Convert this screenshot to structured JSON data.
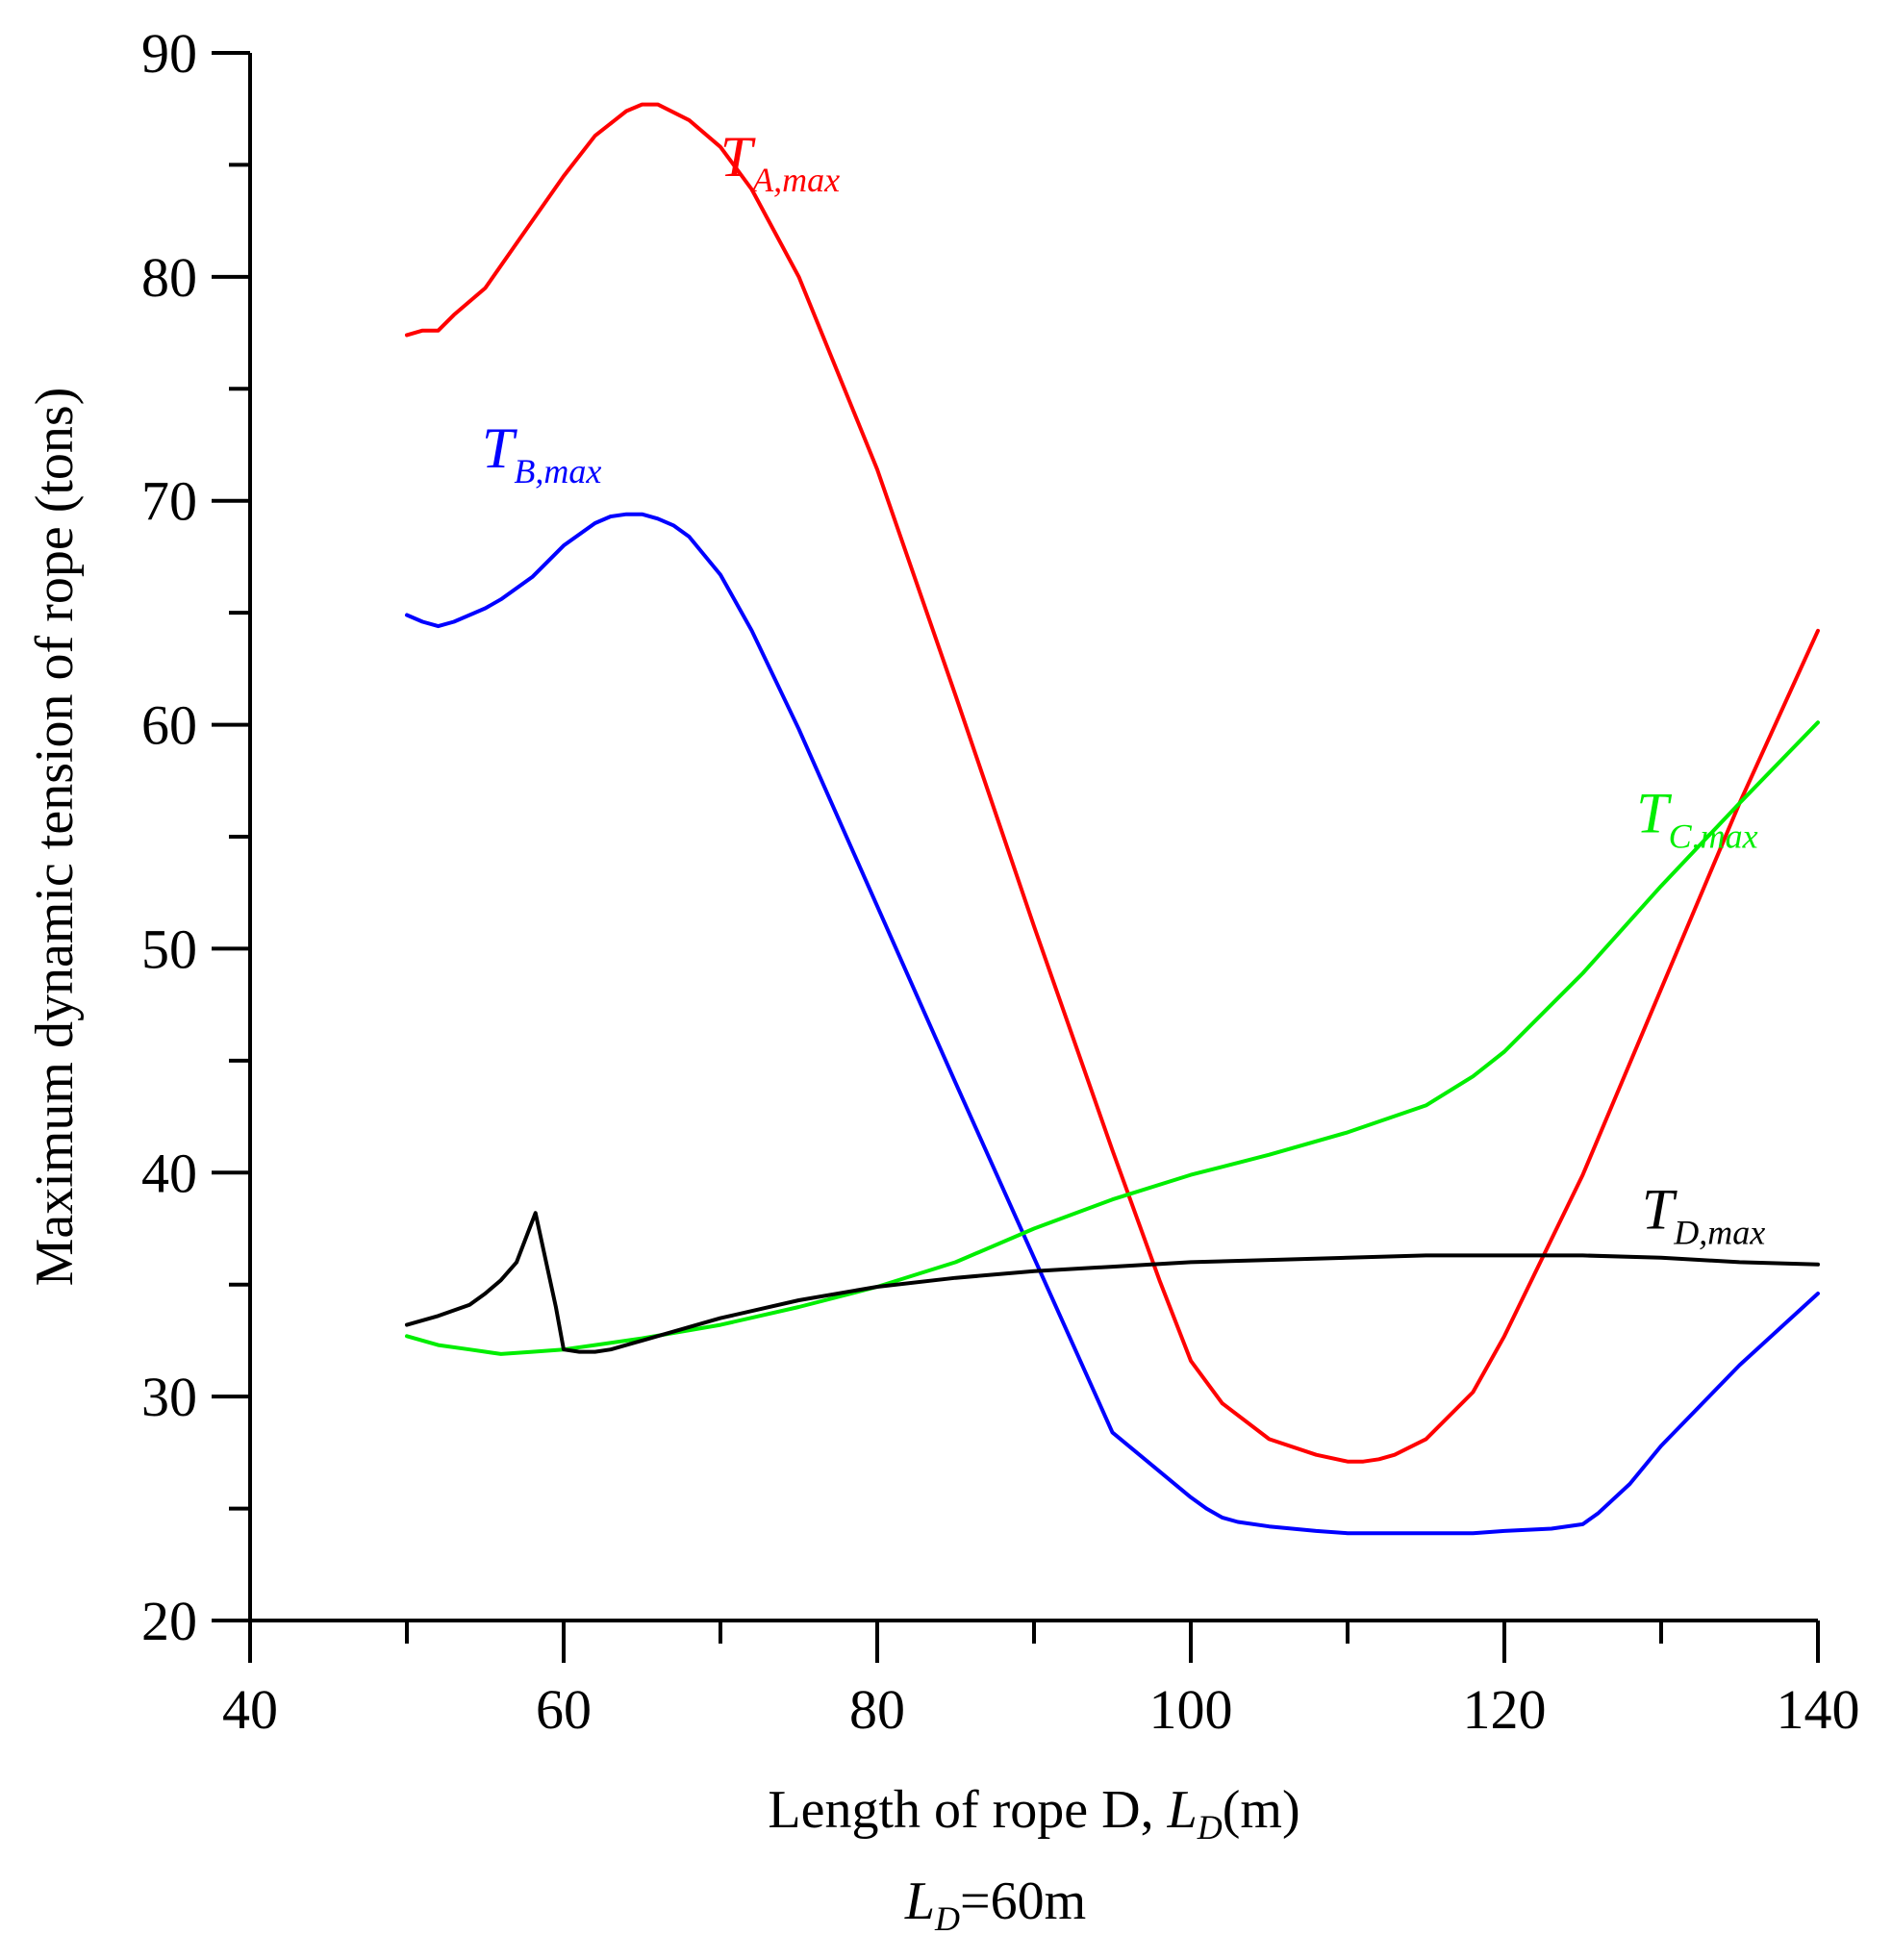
{
  "chart_data": {
    "type": "line",
    "title": "",
    "xlabel": "Length of rope D, L_D(m)",
    "xlabel_parts": {
      "prefix": "Length of rope D, ",
      "var": "L",
      "sub": "D",
      "suffix": "(m)"
    },
    "ylabel": "Maximum dynamic tension of rope (tons)",
    "caption": "L_D=60m",
    "caption_parts": {
      "var": "L",
      "sub": "D",
      "suffix": "=60m"
    },
    "xlim": [
      40,
      140
    ],
    "ylim": [
      20,
      90
    ],
    "x_ticks": [
      "40",
      "60",
      "80",
      "100",
      "120",
      "140"
    ],
    "y_ticks": [
      "20",
      "30",
      "40",
      "50",
      "60",
      "70",
      "80",
      "90"
    ],
    "grid": false,
    "series": [
      {
        "name": "T_A,max",
        "var": "T",
        "sub": "A,max",
        "color": "#ff0000",
        "x": [
          50,
          51,
          52,
          53,
          55,
          57,
          60,
          62,
          64,
          65,
          66,
          68,
          70,
          72,
          75,
          80,
          85,
          90,
          95,
          98,
          100,
          102,
          105,
          108,
          110,
          111,
          112,
          113,
          115,
          118,
          120,
          125,
          130,
          135,
          140
        ],
        "y": [
          77.4,
          77.6,
          77.6,
          78.3,
          79.5,
          81.5,
          84.5,
          86.3,
          87.4,
          87.7,
          87.7,
          87.0,
          85.8,
          83.9,
          80.0,
          71.4,
          61.3,
          51.0,
          41.0,
          35.2,
          31.6,
          29.7,
          28.1,
          27.4,
          27.1,
          27.1,
          27.2,
          27.4,
          28.1,
          30.2,
          32.7,
          39.9,
          48.2,
          56.5,
          64.2
        ]
      },
      {
        "name": "T_B,max",
        "var": "T",
        "sub": "B,max",
        "color": "#0000ff",
        "x": [
          50,
          51,
          52,
          53,
          55,
          56,
          58,
          60,
          62,
          63,
          64,
          65,
          66,
          67,
          68,
          70,
          72,
          75,
          80,
          85,
          90,
          95,
          100,
          101,
          102,
          103,
          105,
          108,
          110,
          112,
          115,
          118,
          120,
          123,
          125,
          126,
          128,
          130,
          135,
          140
        ],
        "y": [
          64.9,
          64.6,
          64.4,
          64.6,
          65.2,
          65.6,
          66.6,
          68.0,
          69.0,
          69.3,
          69.4,
          69.4,
          69.2,
          68.9,
          68.4,
          66.7,
          64.2,
          59.8,
          51.9,
          44.0,
          36.2,
          28.4,
          25.5,
          25.0,
          24.6,
          24.4,
          24.2,
          24.0,
          23.9,
          23.9,
          23.9,
          23.9,
          24.0,
          24.1,
          24.3,
          24.8,
          26.1,
          27.8,
          31.4,
          34.6
        ]
      },
      {
        "name": "T_C,max",
        "var": "T",
        "sub": "C,max",
        "color": "#00ee00",
        "x": [
          50,
          52,
          54,
          56,
          58,
          60,
          62,
          65,
          70,
          75,
          80,
          85,
          90,
          95,
          100,
          105,
          110,
          115,
          118,
          120,
          125,
          130,
          135,
          140
        ],
        "y": [
          32.7,
          32.3,
          32.1,
          31.9,
          32.0,
          32.1,
          32.3,
          32.6,
          33.2,
          34.0,
          34.9,
          36.0,
          37.5,
          38.8,
          39.9,
          40.8,
          41.8,
          43.0,
          44.3,
          45.4,
          48.9,
          52.8,
          56.5,
          60.1
        ]
      },
      {
        "name": "T_D,max",
        "var": "T",
        "sub": "D,max",
        "color": "#000000",
        "x": [
          50,
          52,
          54,
          55,
          56,
          57,
          58.2,
          59.5,
          60,
          61,
          62,
          63,
          65,
          70,
          75,
          80,
          85,
          90,
          95,
          100,
          105,
          110,
          115,
          118,
          120,
          125,
          130,
          135,
          140
        ],
        "y": [
          33.2,
          33.6,
          34.1,
          34.6,
          35.2,
          36.0,
          38.2,
          34.0,
          32.1,
          32.0,
          32.0,
          32.1,
          32.5,
          33.5,
          34.3,
          34.9,
          35.3,
          35.6,
          35.8,
          36.0,
          36.1,
          36.2,
          36.3,
          36.3,
          36.3,
          36.3,
          36.2,
          36.0,
          35.9
        ]
      }
    ]
  }
}
